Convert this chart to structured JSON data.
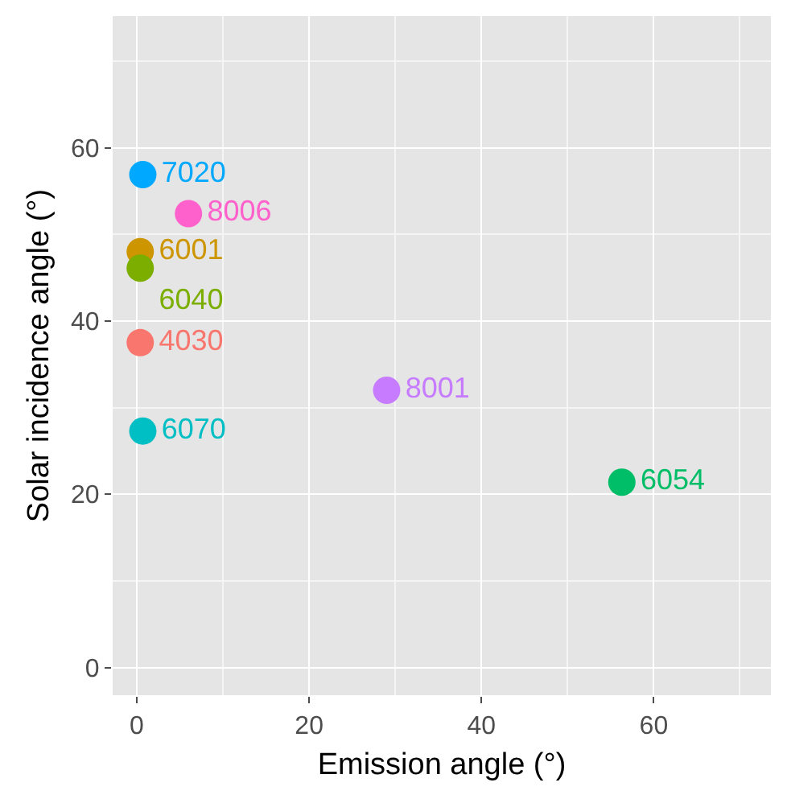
{
  "chart_data": {
    "type": "scatter",
    "xlabel": "Emission angle (°)",
    "ylabel": "Solar incidence angle (°)",
    "xlim": [
      -2.8,
      73.6
    ],
    "ylim": [
      -3.2,
      75.2
    ],
    "xticks": [
      0,
      20,
      40,
      60
    ],
    "yticks": [
      0,
      20,
      40,
      60
    ],
    "grid": true,
    "legend": false,
    "marker": "circle",
    "series": [
      {
        "name": "4030",
        "color": "#f8766d",
        "x": [
          0.4
        ],
        "values": [
          37.5
        ]
      },
      {
        "name": "6001",
        "color": "#cd9600",
        "x": [
          0.4
        ],
        "values": [
          48.0
        ]
      },
      {
        "name": "6040",
        "color": "#7cae00",
        "x": [
          0.4
        ],
        "values": [
          46.1
        ]
      },
      {
        "name": "6054",
        "color": "#00be67",
        "x": [
          56.3
        ],
        "values": [
          21.4
        ]
      },
      {
        "name": "6070",
        "color": "#00bfc4",
        "x": [
          0.7
        ],
        "values": [
          27.3
        ]
      },
      {
        "name": "7020",
        "color": "#00a9ff",
        "x": [
          0.7
        ],
        "values": [
          56.9
        ]
      },
      {
        "name": "8001",
        "color": "#c77cff",
        "x": [
          29.0
        ],
        "values": [
          32.0
        ]
      },
      {
        "name": "8006",
        "color": "#ff61cc",
        "x": [
          6.0
        ],
        "values": [
          52.4
        ]
      }
    ]
  }
}
